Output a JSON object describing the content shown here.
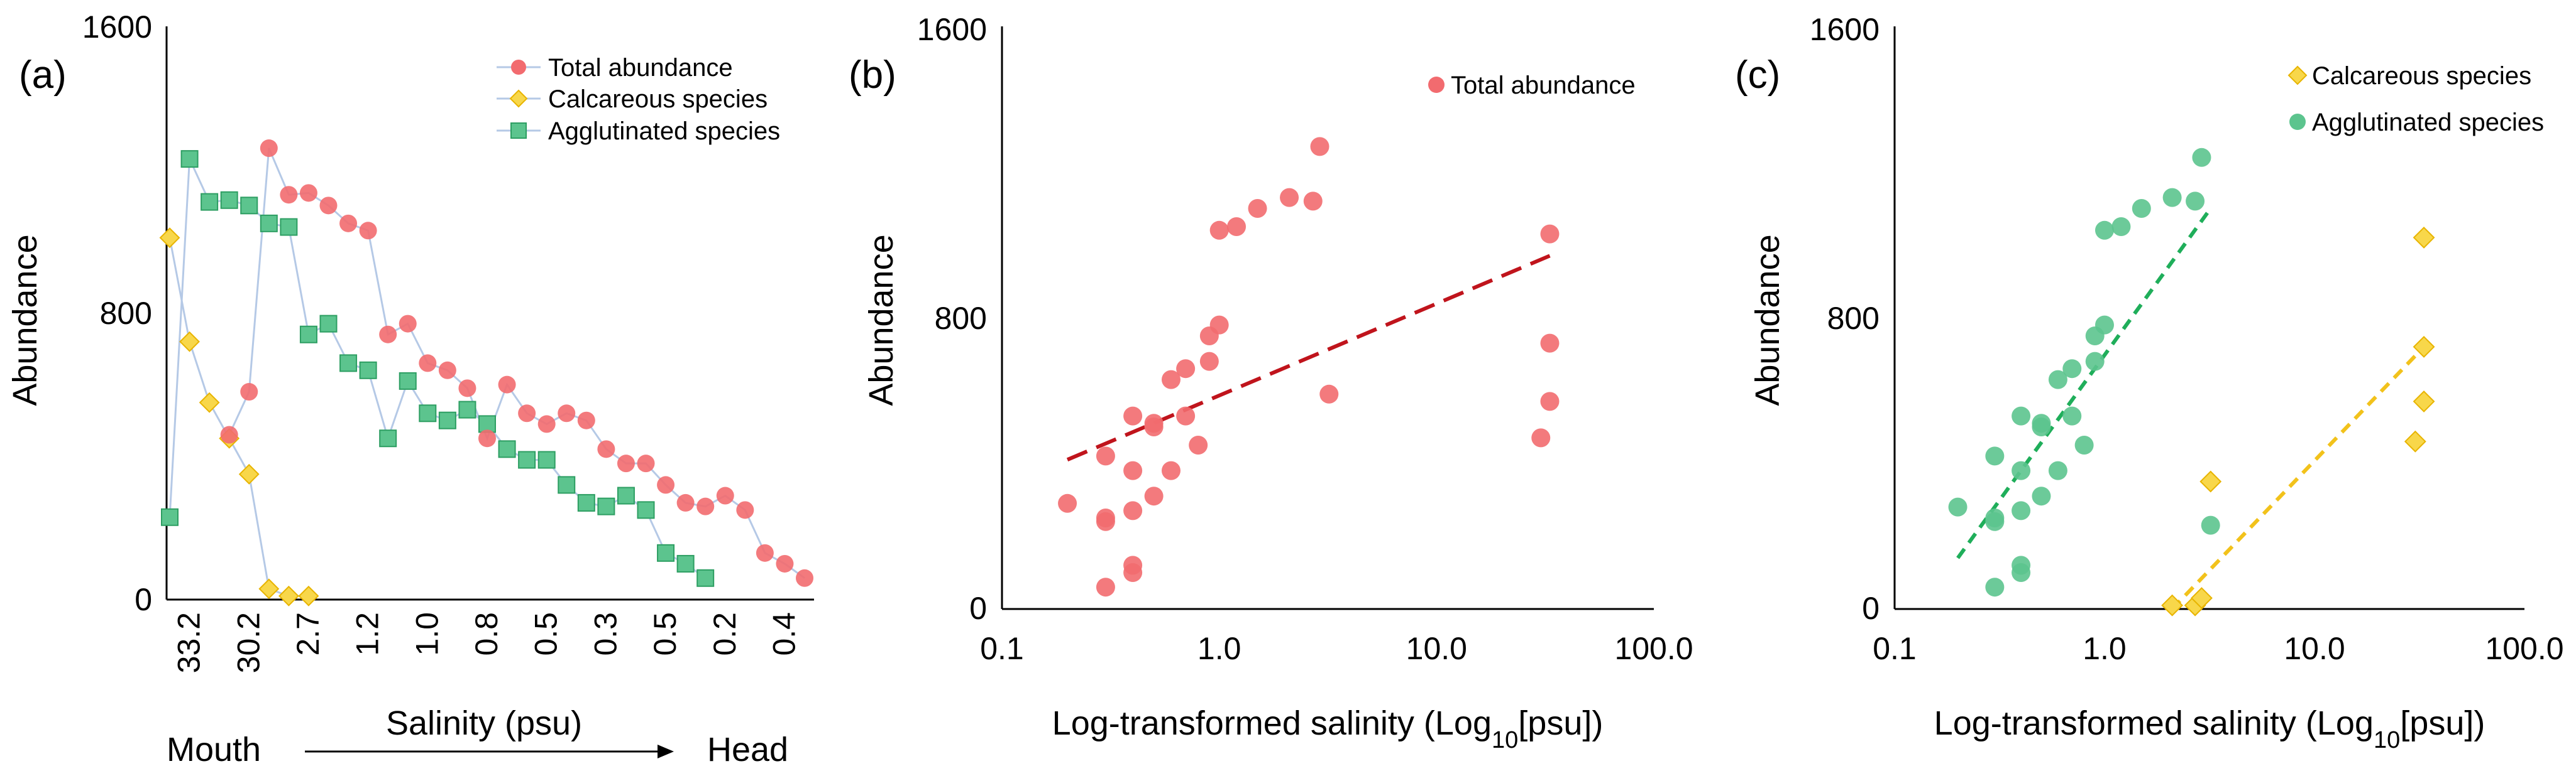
{
  "colors": {
    "total": "#f26b6f",
    "calcareous": "#f8d74a",
    "calcareous_edge": "#e8b400",
    "agglutinated": "#5cc48e",
    "agglutinated_edge": "#2d9e62",
    "connector": "#b5c9e6",
    "fit_total": "#c0141c",
    "fit_calcareous": "#f2c21b",
    "fit_agglutinated": "#1fae5a"
  },
  "chart_data": [
    {
      "panel": "(a)",
      "type": "line",
      "ylabel": "Abundance",
      "ylim": [
        0,
        1600
      ],
      "yticks": [
        0,
        800,
        1600
      ],
      "xtick_labels": [
        "33.2",
        "30.2",
        "2.7",
        "1.2",
        "1.0",
        "0.8",
        "0.5",
        "0.3",
        "0.5",
        "0.2",
        "0.4"
      ],
      "xlabel": "Salinity (psu)",
      "mouth_label": "Mouth",
      "head_label": "Head",
      "legend": [
        "Total abundance",
        "Calcareous species",
        "Agglutinated species"
      ],
      "series": [
        {
          "name": "Total abundance",
          "values": [
            null,
            null,
            null,
            460,
            580,
            1260,
            1130,
            1135,
            1100,
            1050,
            1030,
            740,
            770,
            660,
            640,
            590,
            450,
            600,
            520,
            490,
            520,
            500,
            420,
            380,
            380,
            320,
            270,
            260,
            290,
            250,
            130,
            100,
            60
          ]
        },
        {
          "name": "Calcareous species",
          "values": [
            1010,
            720,
            550,
            450,
            350,
            30,
            10,
            10,
            null,
            null,
            null,
            null,
            null,
            null,
            null,
            null,
            null,
            null,
            null,
            null,
            null,
            null,
            null,
            null,
            null,
            null,
            null,
            null,
            null,
            null,
            null,
            null,
            null
          ]
        },
        {
          "name": "Agglutinated species",
          "values": [
            230,
            1230,
            1110,
            1115,
            1100,
            1050,
            1040,
            740,
            770,
            660,
            640,
            450,
            610,
            520,
            500,
            530,
            490,
            420,
            390,
            390,
            320,
            270,
            260,
            290,
            250,
            130,
            100,
            60,
            null,
            null,
            null,
            null,
            null
          ]
        }
      ]
    },
    {
      "panel": "(b)",
      "type": "scatter",
      "ylabel": "Abundance",
      "xlabel_prefix": "Log-transformed salinity (Log",
      "xlabel_sub": "10",
      "xlabel_suffix": "[psu])",
      "xscale": "log",
      "xlim": [
        0.1,
        100
      ],
      "xtick_labels": [
        "0.1",
        "1.0",
        "10.0",
        "100.0"
      ],
      "xtick_values": [
        0.1,
        1,
        10,
        100
      ],
      "ylim": [
        0,
        1600
      ],
      "yticks": [
        0,
        800,
        1600
      ],
      "legend": [
        "Total abundance"
      ],
      "series": [
        {
          "name": "Total abundance",
          "x": [
            0.2,
            0.3,
            0.3,
            0.3,
            0.3,
            0.4,
            0.4,
            0.4,
            0.4,
            0.4,
            0.5,
            0.5,
            0.5,
            0.6,
            0.6,
            0.7,
            0.7,
            0.8,
            0.9,
            0.9,
            1.0,
            1.0,
            1.2,
            1.5,
            2.1,
            2.7,
            2.9,
            3.2,
            30.2,
            33.2,
            33.2,
            33.2
          ],
          "y": [
            290,
            60,
            240,
            250,
            420,
            100,
            120,
            270,
            380,
            530,
            310,
            500,
            510,
            380,
            630,
            530,
            660,
            450,
            680,
            750,
            780,
            1040,
            1050,
            1100,
            1130,
            1120,
            1270,
            590,
            470,
            1030,
            730,
            570
          ]
        }
      ],
      "fits": [
        {
          "name": "Total abundance trend",
          "x": [
            0.2,
            33.2
          ],
          "y": [
            410,
            970
          ]
        }
      ]
    },
    {
      "panel": "(c)",
      "type": "scatter",
      "ylabel": "Abundance",
      "xlabel_prefix": "Log-transformed salinity (Log",
      "xlabel_sub": "10",
      "xlabel_suffix": "[psu])",
      "xscale": "log",
      "xlim": [
        0.1,
        100
      ],
      "xtick_labels": [
        "0.1",
        "1.0",
        "10.0",
        "100.0"
      ],
      "xtick_values": [
        0.1,
        1,
        10,
        100
      ],
      "ylim": [
        0,
        1600
      ],
      "yticks": [
        0,
        800,
        1600
      ],
      "legend": [
        "Calcareous species",
        "Agglutinated species"
      ],
      "series": [
        {
          "name": "Calcareous species",
          "x": [
            2.1,
            2.7,
            2.9,
            3.2,
            30.2,
            33.2,
            33.2,
            33.2
          ],
          "y": [
            10,
            10,
            30,
            350,
            460,
            1020,
            720,
            570
          ]
        },
        {
          "name": "Agglutinated species",
          "x": [
            0.2,
            0.3,
            0.3,
            0.3,
            0.3,
            0.4,
            0.4,
            0.4,
            0.4,
            0.4,
            0.5,
            0.5,
            0.5,
            0.6,
            0.6,
            0.7,
            0.7,
            0.8,
            0.9,
            0.9,
            1.0,
            1.0,
            1.2,
            1.5,
            2.1,
            2.7,
            2.9,
            3.2
          ],
          "y": [
            280,
            60,
            240,
            250,
            420,
            100,
            120,
            270,
            380,
            530,
            310,
            500,
            510,
            380,
            630,
            530,
            660,
            450,
            680,
            750,
            780,
            1040,
            1050,
            1100,
            1130,
            1120,
            1240,
            230
          ]
        }
      ],
      "fits": [
        {
          "name": "Agglutinated species trend",
          "x": [
            0.2,
            3.2
          ],
          "y": [
            140,
            1100
          ]
        },
        {
          "name": "Calcareous species trend",
          "x": [
            2.1,
            33.2
          ],
          "y": [
            0,
            720
          ]
        }
      ]
    }
  ]
}
